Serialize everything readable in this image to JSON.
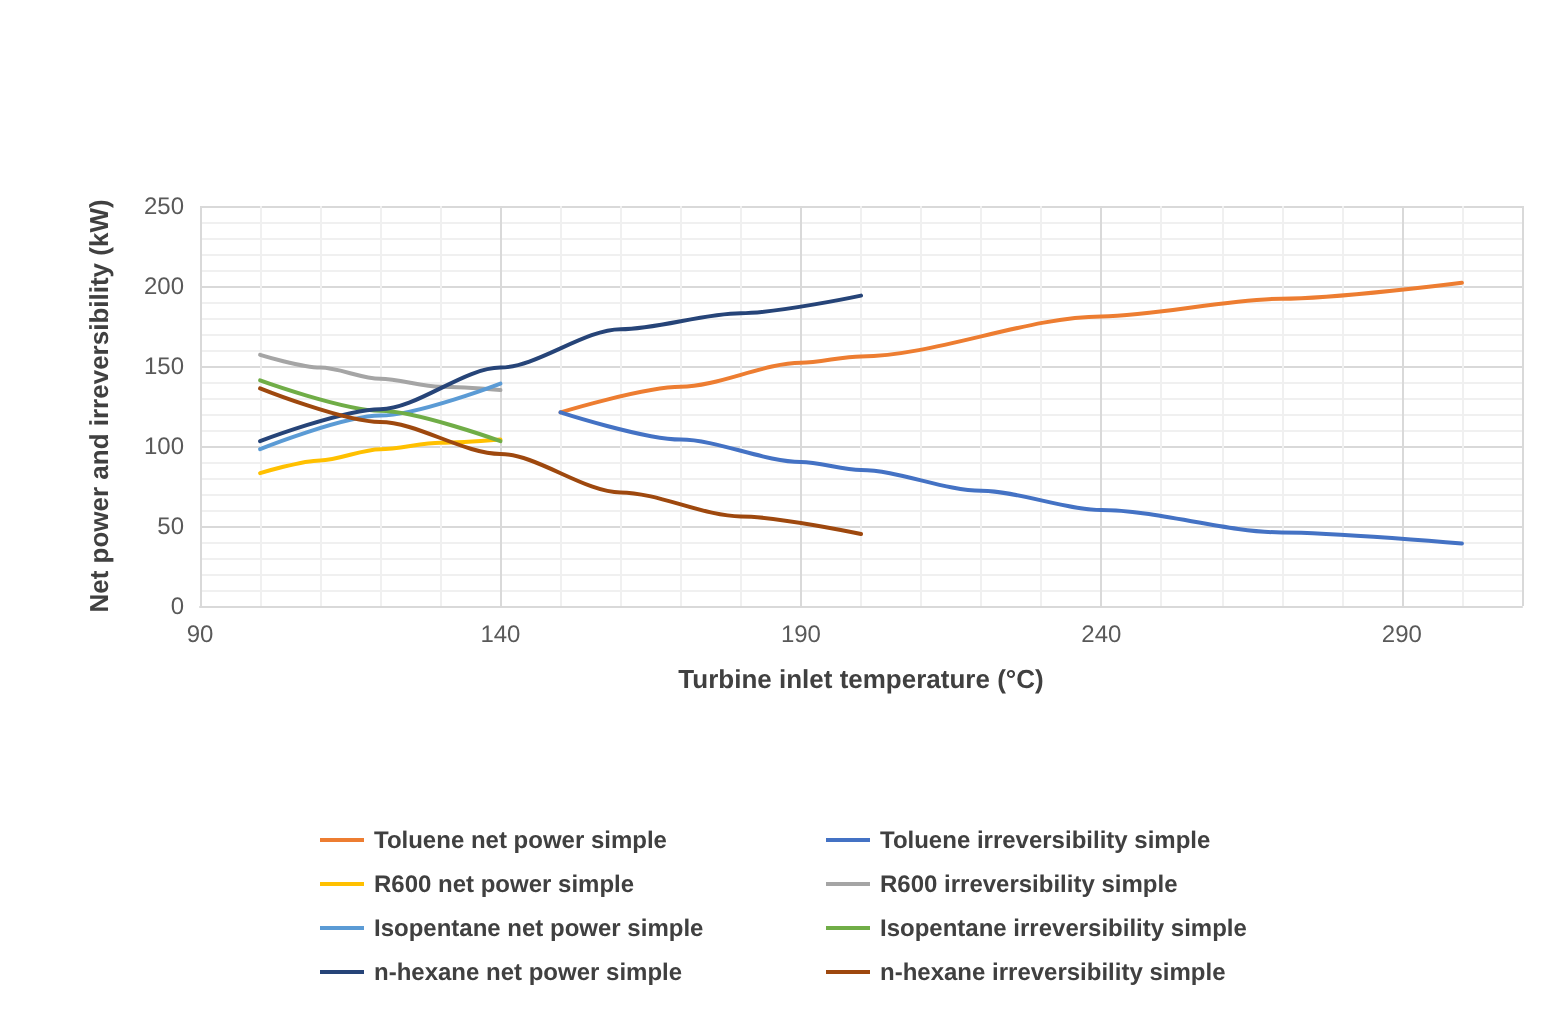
{
  "chart_data": {
    "type": "line",
    "xlabel": "Turbine inlet temperature (°C)",
    "ylabel": "Net power and irreversibility (kW)",
    "xlim": [
      90,
      310
    ],
    "xticks": [
      90,
      140,
      190,
      240,
      290
    ],
    "ylim": [
      0,
      250
    ],
    "yticks": [
      0,
      50,
      100,
      150,
      200,
      250
    ],
    "grid": true,
    "legend": "bottom",
    "marker": "none",
    "line_style": "solid",
    "series": [
      {
        "name": "Toluene net power simple",
        "color": "#ed7d31",
        "x": [
          150,
          170,
          190,
          200,
          240,
          270,
          300
        ],
        "values": [
          121,
          137,
          152,
          156,
          181,
          192,
          202
        ]
      },
      {
        "name": "Toluene irreversibility simple",
        "color": "#4472c4",
        "x": [
          150,
          170,
          190,
          200,
          220,
          240,
          270,
          300
        ],
        "values": [
          121,
          104,
          90,
          85,
          72,
          60,
          46,
          39
        ]
      },
      {
        "name": "R600 net power simple",
        "color": "#ffc000",
        "x": [
          100,
          110,
          120,
          130,
          140
        ],
        "values": [
          83,
          91,
          98,
          102,
          104
        ]
      },
      {
        "name": "R600 irreversibility simple",
        "color": "#a5a5a5",
        "x": [
          100,
          110,
          120,
          130,
          140
        ],
        "values": [
          157,
          149,
          142,
          137,
          135
        ]
      },
      {
        "name": "Isopentane net power simple",
        "color": "#5b9bd5",
        "x": [
          100,
          120,
          140
        ],
        "values": [
          98,
          119,
          139
        ]
      },
      {
        "name": "Isopentane irreversibility simple",
        "color": "#70ad47",
        "x": [
          100,
          120,
          140
        ],
        "values": [
          141,
          122,
          103
        ]
      },
      {
        "name": "n-hexane net power simple",
        "color": "#264478",
        "x": [
          100,
          120,
          140,
          160,
          180,
          200
        ],
        "values": [
          103,
          123,
          149,
          173,
          183,
          194
        ]
      },
      {
        "name": "n-hexane irreversibility simple",
        "color": "#9e480e",
        "x": [
          100,
          120,
          140,
          160,
          180,
          200
        ],
        "values": [
          136,
          115,
          95,
          71,
          56,
          45
        ]
      }
    ]
  }
}
